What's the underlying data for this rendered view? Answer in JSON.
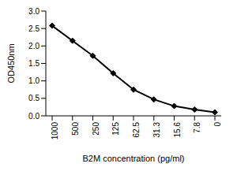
{
  "chart_data": {
    "type": "line",
    "x_label": "B2M concentration (pg/ml)",
    "y_label": "OD450nm",
    "categories": [
      "1000",
      "500",
      "250",
      "125",
      "62.5",
      "31.3",
      "15.6",
      "7.8",
      "0"
    ],
    "values": [
      2.58,
      2.15,
      1.72,
      1.22,
      0.75,
      0.47,
      0.28,
      0.18,
      0.1
    ],
    "color": "#000000",
    "marker": "diamond",
    "ylim": [
      0,
      3
    ],
    "yticks": [
      {
        "value": 0,
        "label": "0.0"
      },
      {
        "value": 0.5,
        "label": "0.5"
      },
      {
        "value": 1,
        "label": "1.0"
      },
      {
        "value": 1.5,
        "label": "1.5"
      },
      {
        "value": 2,
        "label": "2.0"
      },
      {
        "value": 2.5,
        "label": "2.5"
      },
      {
        "value": 3,
        "label": "3.0"
      }
    ],
    "grid": false
  }
}
